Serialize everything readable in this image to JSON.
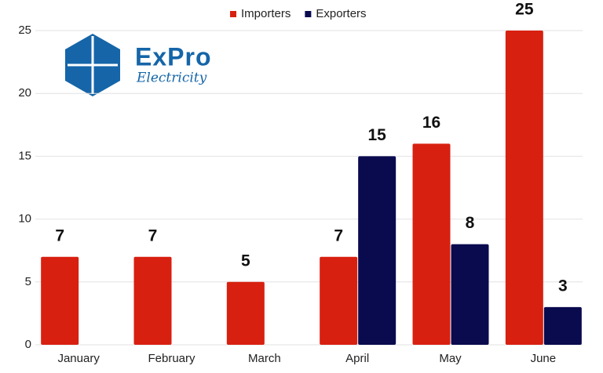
{
  "logo": {
    "name": "ExPro",
    "tagline": "Electricity"
  },
  "chart_data": {
    "type": "bar",
    "categories": [
      "January",
      "February",
      "March",
      "April",
      "May",
      "June"
    ],
    "series": [
      {
        "name": "Importers",
        "color": "#d82010",
        "values": [
          7,
          7,
          5,
          7,
          16,
          25
        ]
      },
      {
        "name": "Exporters",
        "color": "#0a0a4f",
        "values": [
          null,
          null,
          null,
          15,
          8,
          3
        ]
      }
    ],
    "ylim": [
      0,
      25
    ],
    "yticks": [
      0,
      5,
      10,
      15,
      20,
      25
    ],
    "grid": true,
    "legend": "top"
  }
}
